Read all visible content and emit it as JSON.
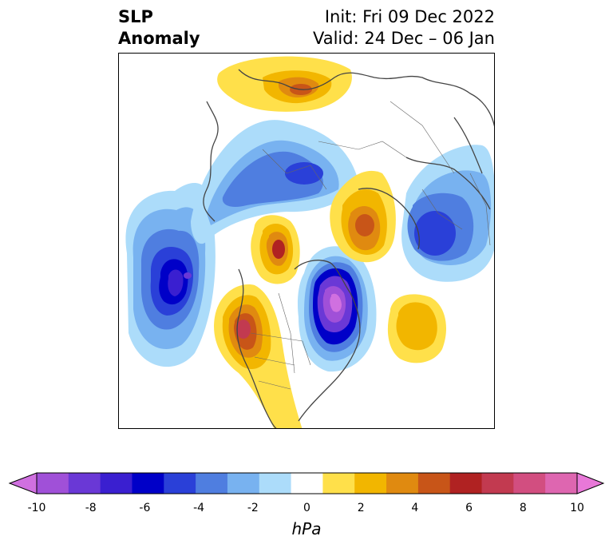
{
  "header": {
    "title_line1": "SLP",
    "title_line2": "Anomaly",
    "init": "Init: Fri 09 Dec 2022",
    "valid": "Valid: 24 Dec – 06 Jan"
  },
  "colorbar": {
    "label": "hPa",
    "ticks": [
      "-10",
      "-8",
      "-6",
      "-4",
      "-2",
      "0",
      "2",
      "4",
      "6",
      "8",
      "10"
    ],
    "colors": [
      "#d070e0",
      "#a050d8",
      "#6a38d6",
      "#3a1fd0",
      "#0000c8",
      "#2a40d8",
      "#4f7ee0",
      "#78b2f0",
      "#acdcfa",
      "#ffffff",
      "#ffe04a",
      "#f2b600",
      "#e08a10",
      "#c85518",
      "#b02222",
      "#c23a50",
      "#d24e80",
      "#de66b0",
      "#e878d8"
    ],
    "extend_low_color": "#d070e0",
    "extend_high_color": "#e878d8"
  }
}
